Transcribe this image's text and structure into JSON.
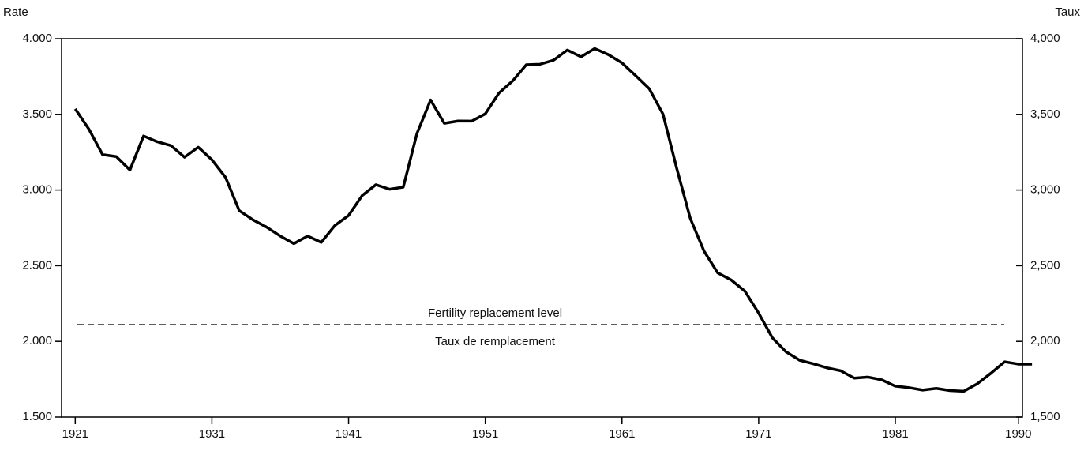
{
  "chart_data": {
    "type": "line",
    "y_label": "Rate",
    "y2_label": "Taux",
    "x": [
      1921,
      1922,
      1923,
      1924,
      1925,
      1926,
      1927,
      1928,
      1929,
      1930,
      1931,
      1932,
      1933,
      1934,
      1935,
      1936,
      1937,
      1938,
      1939,
      1940,
      1941,
      1942,
      1943,
      1944,
      1945,
      1946,
      1947,
      1948,
      1949,
      1950,
      1951,
      1952,
      1953,
      1954,
      1955,
      1956,
      1957,
      1958,
      1959,
      1960,
      1961,
      1962,
      1963,
      1964,
      1965,
      1966,
      1967,
      1968,
      1969,
      1970,
      1971,
      1972,
      1973,
      1974,
      1975,
      1976,
      1977,
      1978,
      1979,
      1980,
      1981,
      1982,
      1983,
      1984,
      1985,
      1986,
      1987,
      1988,
      1989,
      1990,
      1991
    ],
    "series": [
      {
        "color": "#000000",
        "values": [
          3536,
          3402,
          3234,
          3221,
          3132,
          3357,
          3319,
          3294,
          3217,
          3283,
          3200,
          3083,
          2864,
          2803,
          2755,
          2696,
          2646,
          2696,
          2654,
          2766,
          2832,
          2964,
          3035,
          3005,
          3019,
          3373,
          3595,
          3441,
          3456,
          3455,
          3503,
          3641,
          3721,
          3828,
          3831,
          3858,
          3925,
          3880,
          3935,
          3895,
          3840,
          3756,
          3669,
          3502,
          3145,
          2812,
          2597,
          2453,
          2405,
          2331,
          2187,
          2024,
          1931,
          1875,
          1852,
          1825,
          1806,
          1757,
          1764,
          1746,
          1704,
          1694,
          1678,
          1689,
          1675,
          1670,
          1720,
          1790,
          1865,
          1850,
          1850
        ]
      }
    ],
    "xlim": [
      1920,
      1990.3
    ],
    "xticks": [
      1921,
      1931,
      1941,
      1951,
      1961,
      1971,
      1981,
      1990
    ],
    "ylim": [
      1500,
      4000
    ],
    "yticks": [
      {
        "value": 1500,
        "label": "1.500"
      },
      {
        "value": 2000,
        "label": "2.000"
      },
      {
        "value": 2500,
        "label": "2.500"
      },
      {
        "value": 3000,
        "label": "3.000"
      },
      {
        "value": 3500,
        "label": "3.500"
      },
      {
        "value": 4000,
        "label": "4.000"
      }
    ],
    "y2lim": [
      1500,
      4000
    ],
    "y2ticks": [
      {
        "value": 1500,
        "label": "1,500"
      },
      {
        "value": 2000,
        "label": "2,000"
      },
      {
        "value": 2500,
        "label": "2,500"
      },
      {
        "value": 3000,
        "label": "3,000"
      },
      {
        "value": 3500,
        "label": "3,500"
      },
      {
        "value": 4000,
        "label": "4,000"
      }
    ],
    "reference_line": {
      "value": 2110,
      "label_above": "Fertility replacement level",
      "label_below": "Taux de remplacement"
    }
  }
}
